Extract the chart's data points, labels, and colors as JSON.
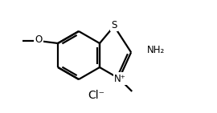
{
  "bg_color": "#ffffff",
  "line_color": "#000000",
  "line_width": 1.6,
  "font_size": 8.5,
  "cl_text": "Cl⁻",
  "n_plus": "N⁺",
  "nh2": "NH₂",
  "s_label": "S",
  "o_label": "O"
}
